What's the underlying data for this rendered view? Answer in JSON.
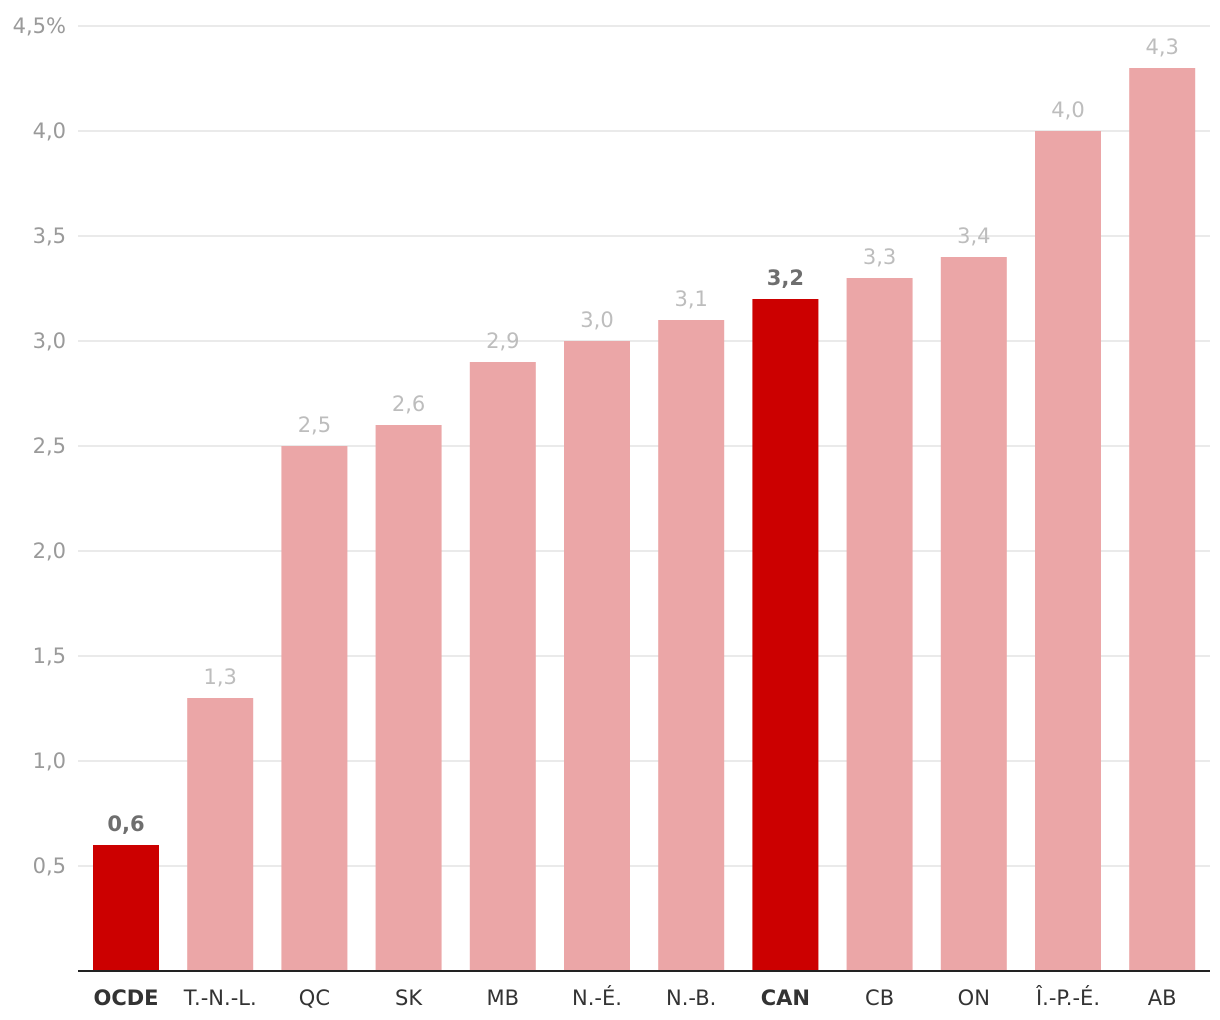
{
  "chart_data": {
    "type": "bar",
    "title": "",
    "xlabel": "",
    "ylabel": "",
    "ylim": [
      0,
      4.5
    ],
    "y_ticks": [
      {
        "value": 0.5,
        "label": "0,5"
      },
      {
        "value": 1.0,
        "label": "1,0"
      },
      {
        "value": 1.5,
        "label": "1,5"
      },
      {
        "value": 2.0,
        "label": "2,0"
      },
      {
        "value": 2.5,
        "label": "2,5"
      },
      {
        "value": 3.0,
        "label": "3,0"
      },
      {
        "value": 3.5,
        "label": "3,5"
      },
      {
        "value": 4.0,
        "label": "4,0"
      },
      {
        "value": 4.5,
        "label": "4,5%"
      }
    ],
    "grid": true,
    "legend": "none",
    "categories": [
      "OCDE",
      "T.-N.-L.",
      "QC",
      "SK",
      "MB",
      "N.-É.",
      "N.-B.",
      "CAN",
      "CB",
      "ON",
      "Î.-P.-É.",
      "AB"
    ],
    "values": [
      0.6,
      1.3,
      2.5,
      2.6,
      2.9,
      3.0,
      3.1,
      3.2,
      3.3,
      3.4,
      4.0,
      4.3
    ],
    "value_labels": [
      "0,6",
      "1,3",
      "2,5",
      "2,6",
      "2,9",
      "3,0",
      "3,1",
      "3,2",
      "3,3",
      "3,4",
      "4,0",
      "4,3"
    ],
    "highlighted": [
      true,
      false,
      false,
      false,
      false,
      false,
      false,
      true,
      false,
      false,
      false,
      false
    ],
    "colors": {
      "highlight": "#cc0000",
      "default": "#eba6a7",
      "grid": "#e3e3e3",
      "axis": "#222222"
    }
  }
}
